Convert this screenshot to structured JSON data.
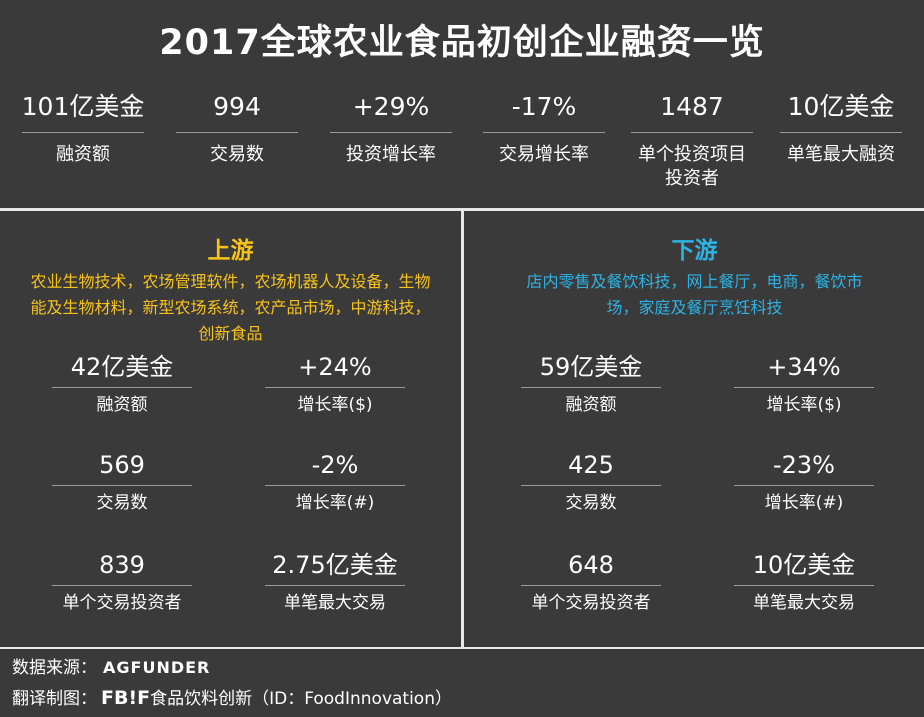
{
  "title": "2017全球农业食品初创企业融资一览",
  "summary": [
    {
      "value": "101亿美金",
      "label": "融资额"
    },
    {
      "value": "994",
      "label": "交易数"
    },
    {
      "value": "+29%",
      "label": "投资增长率"
    },
    {
      "value": "-17%",
      "label": "交易增长率"
    },
    {
      "value": "1487",
      "label": "单个投资项目",
      "label2": "投资者"
    },
    {
      "value": "10亿美金",
      "label": "单笔最大融资"
    }
  ],
  "upstream": {
    "title": "上游",
    "desc_line1": "农业生物技术，农场管理软件，农场机器人及设备，生物",
    "desc_line2": "能及生物材料，新型农场系统，农产品市场，中游科技，",
    "desc_line3": "创新食品",
    "stats": [
      {
        "value": "42亿美金",
        "label": "融资额"
      },
      {
        "value": "+24%",
        "label": "增长率($)"
      },
      {
        "value": "569",
        "label": "交易数"
      },
      {
        "value": "-2%",
        "label": "增长率(#)"
      },
      {
        "value": "839",
        "label": "单个交易投资者"
      },
      {
        "value": "2.75亿美金",
        "label": "单笔最大交易"
      }
    ]
  },
  "downstream": {
    "title": "下游",
    "desc_line1": "店内零售及餐饮科技，网上餐厅，电商，餐饮市",
    "desc_line2": "场，家庭及餐厅烹饪科技",
    "stats": [
      {
        "value": "59亿美金",
        "label": "融资额"
      },
      {
        "value": "+34%",
        "label": "增长率($)"
      },
      {
        "value": "425",
        "label": "交易数"
      },
      {
        "value": "-23%",
        "label": "增长率(#)"
      },
      {
        "value": "648",
        "label": "单个交易投资者"
      },
      {
        "value": "10亿美金",
        "label": "单笔最大交易"
      }
    ]
  },
  "footer": {
    "source_label": "数据来源：",
    "source_logo": "AGFUNDER",
    "credit_label": "翻译制图：",
    "credit_brand": "FB!F",
    "credit_text": "食品饮料创新（ID：FoodInnovation）"
  }
}
